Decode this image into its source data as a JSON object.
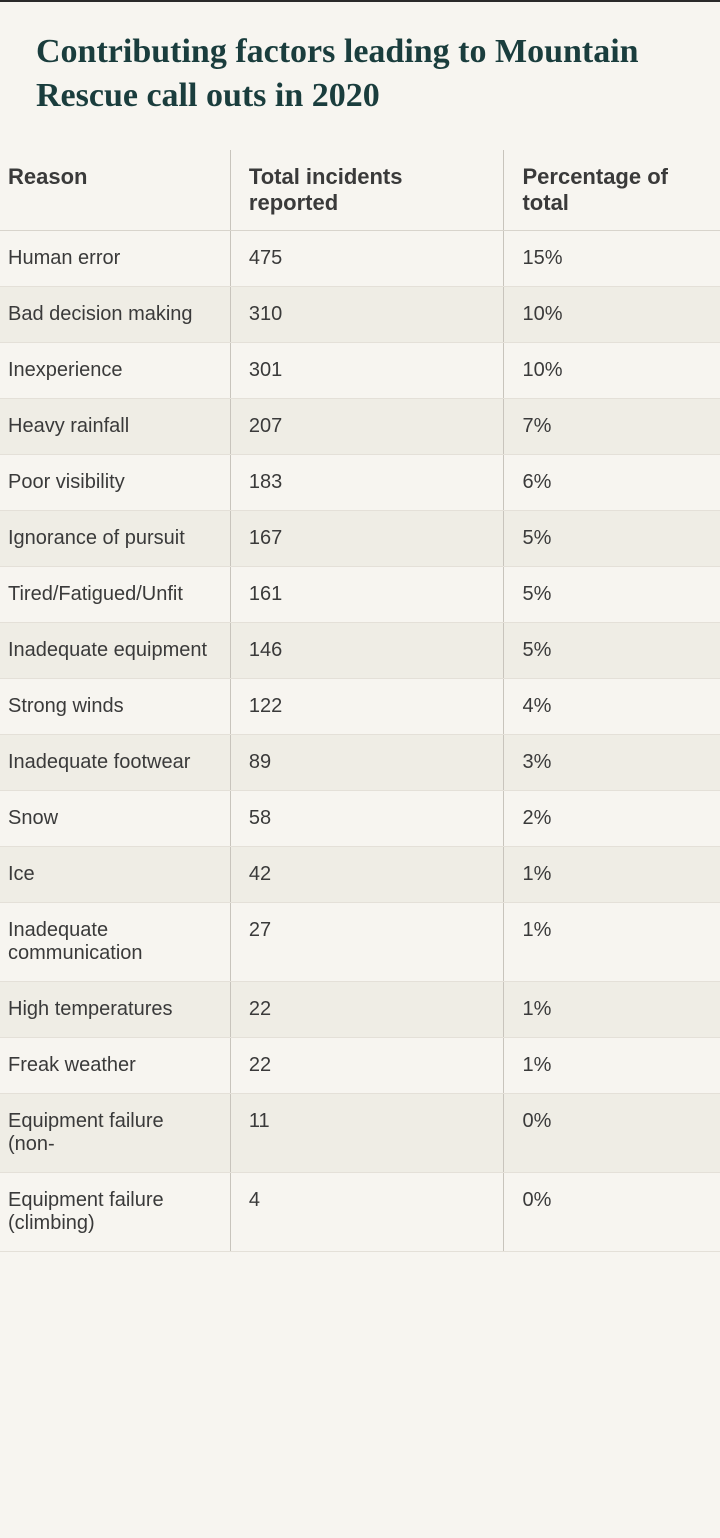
{
  "title": "Contributing factors leading to Mountain Rescue call outs in 2020",
  "table": {
    "columns": [
      "Reason",
      "Total incidents reported",
      "Percentage of total"
    ],
    "rows": [
      [
        "Human error",
        "475",
        "15%"
      ],
      [
        "Bad decision making",
        "310",
        "10%"
      ],
      [
        "Inexperience",
        "301",
        "10%"
      ],
      [
        "Heavy rainfall",
        "207",
        "7%"
      ],
      [
        "Poor visibility",
        "183",
        "6%"
      ],
      [
        "Ignorance of pursuit",
        "167",
        "5%"
      ],
      [
        "Tired/Fatigued/Unfit",
        "161",
        "5%"
      ],
      [
        "Inadequate equipment",
        "146",
        "5%"
      ],
      [
        "Strong winds",
        "122",
        "4%"
      ],
      [
        "Inadequate footwear",
        "89",
        "3%"
      ],
      [
        "Snow",
        "58",
        "2%"
      ],
      [
        "Ice",
        "42",
        "1%"
      ],
      [
        "Inadequate communication",
        "27",
        "1%"
      ],
      [
        "High temperatures",
        "22",
        "1%"
      ],
      [
        "Freak weather",
        "22",
        "1%"
      ],
      [
        "Equipment failure (non-",
        "11",
        "0%"
      ],
      [
        "Equipment failure (climbing)",
        "4",
        "0%"
      ]
    ],
    "header_font_size": 22,
    "cell_font_size": 20,
    "background_color": "#f7f5f0",
    "alt_row_color": "#efede5",
    "border_color": "#d8d4cc",
    "text_color": "#3a3a3a",
    "title_color": "#1a3d3d"
  }
}
